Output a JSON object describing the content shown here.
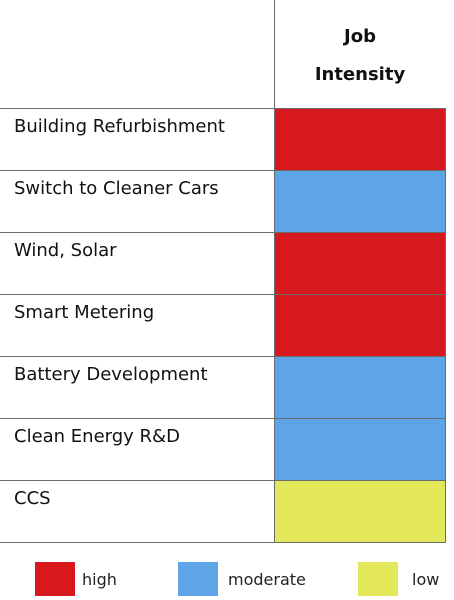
{
  "table": {
    "header": "Job Intensity",
    "rows": [
      {
        "label": "Building Refurbishment",
        "level": "high"
      },
      {
        "label": "Switch to Cleaner Cars",
        "level": "moderate"
      },
      {
        "label": "Wind, Solar",
        "level": "high"
      },
      {
        "label": "Smart Metering",
        "level": "high"
      },
      {
        "label": "Battery Development",
        "level": "moderate"
      },
      {
        "label": "Clean Energy R&D",
        "level": "moderate"
      },
      {
        "label": "CCS",
        "level": "low"
      }
    ]
  },
  "legend": [
    {
      "label": "high",
      "color": "#d7191f"
    },
    {
      "label": "moderate",
      "color": "#5ea5e8"
    },
    {
      "label": "low",
      "color": "#e2e85a"
    }
  ]
}
